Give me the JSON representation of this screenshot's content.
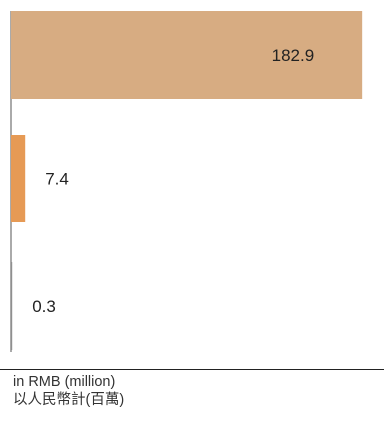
{
  "chart_data": {
    "type": "bar",
    "orientation": "horizontal",
    "categories": [
      "",
      "",
      ""
    ],
    "values": [
      182.9,
      7.4,
      0.3
    ],
    "data_labels": [
      "182.9",
      "7.4",
      "0.3"
    ],
    "xlim": [
      0,
      200
    ],
    "grid": false,
    "legend": false,
    "unit_en": "in RMB (million)",
    "unit_zh": "以人民幣計(百萬)",
    "bar_colors": [
      "#d7ac82",
      "#e69a55",
      "#8f8f8f"
    ]
  },
  "colors": {
    "axis_line": "#555555",
    "label_text": "#222222",
    "unit_text": "#333333"
  }
}
